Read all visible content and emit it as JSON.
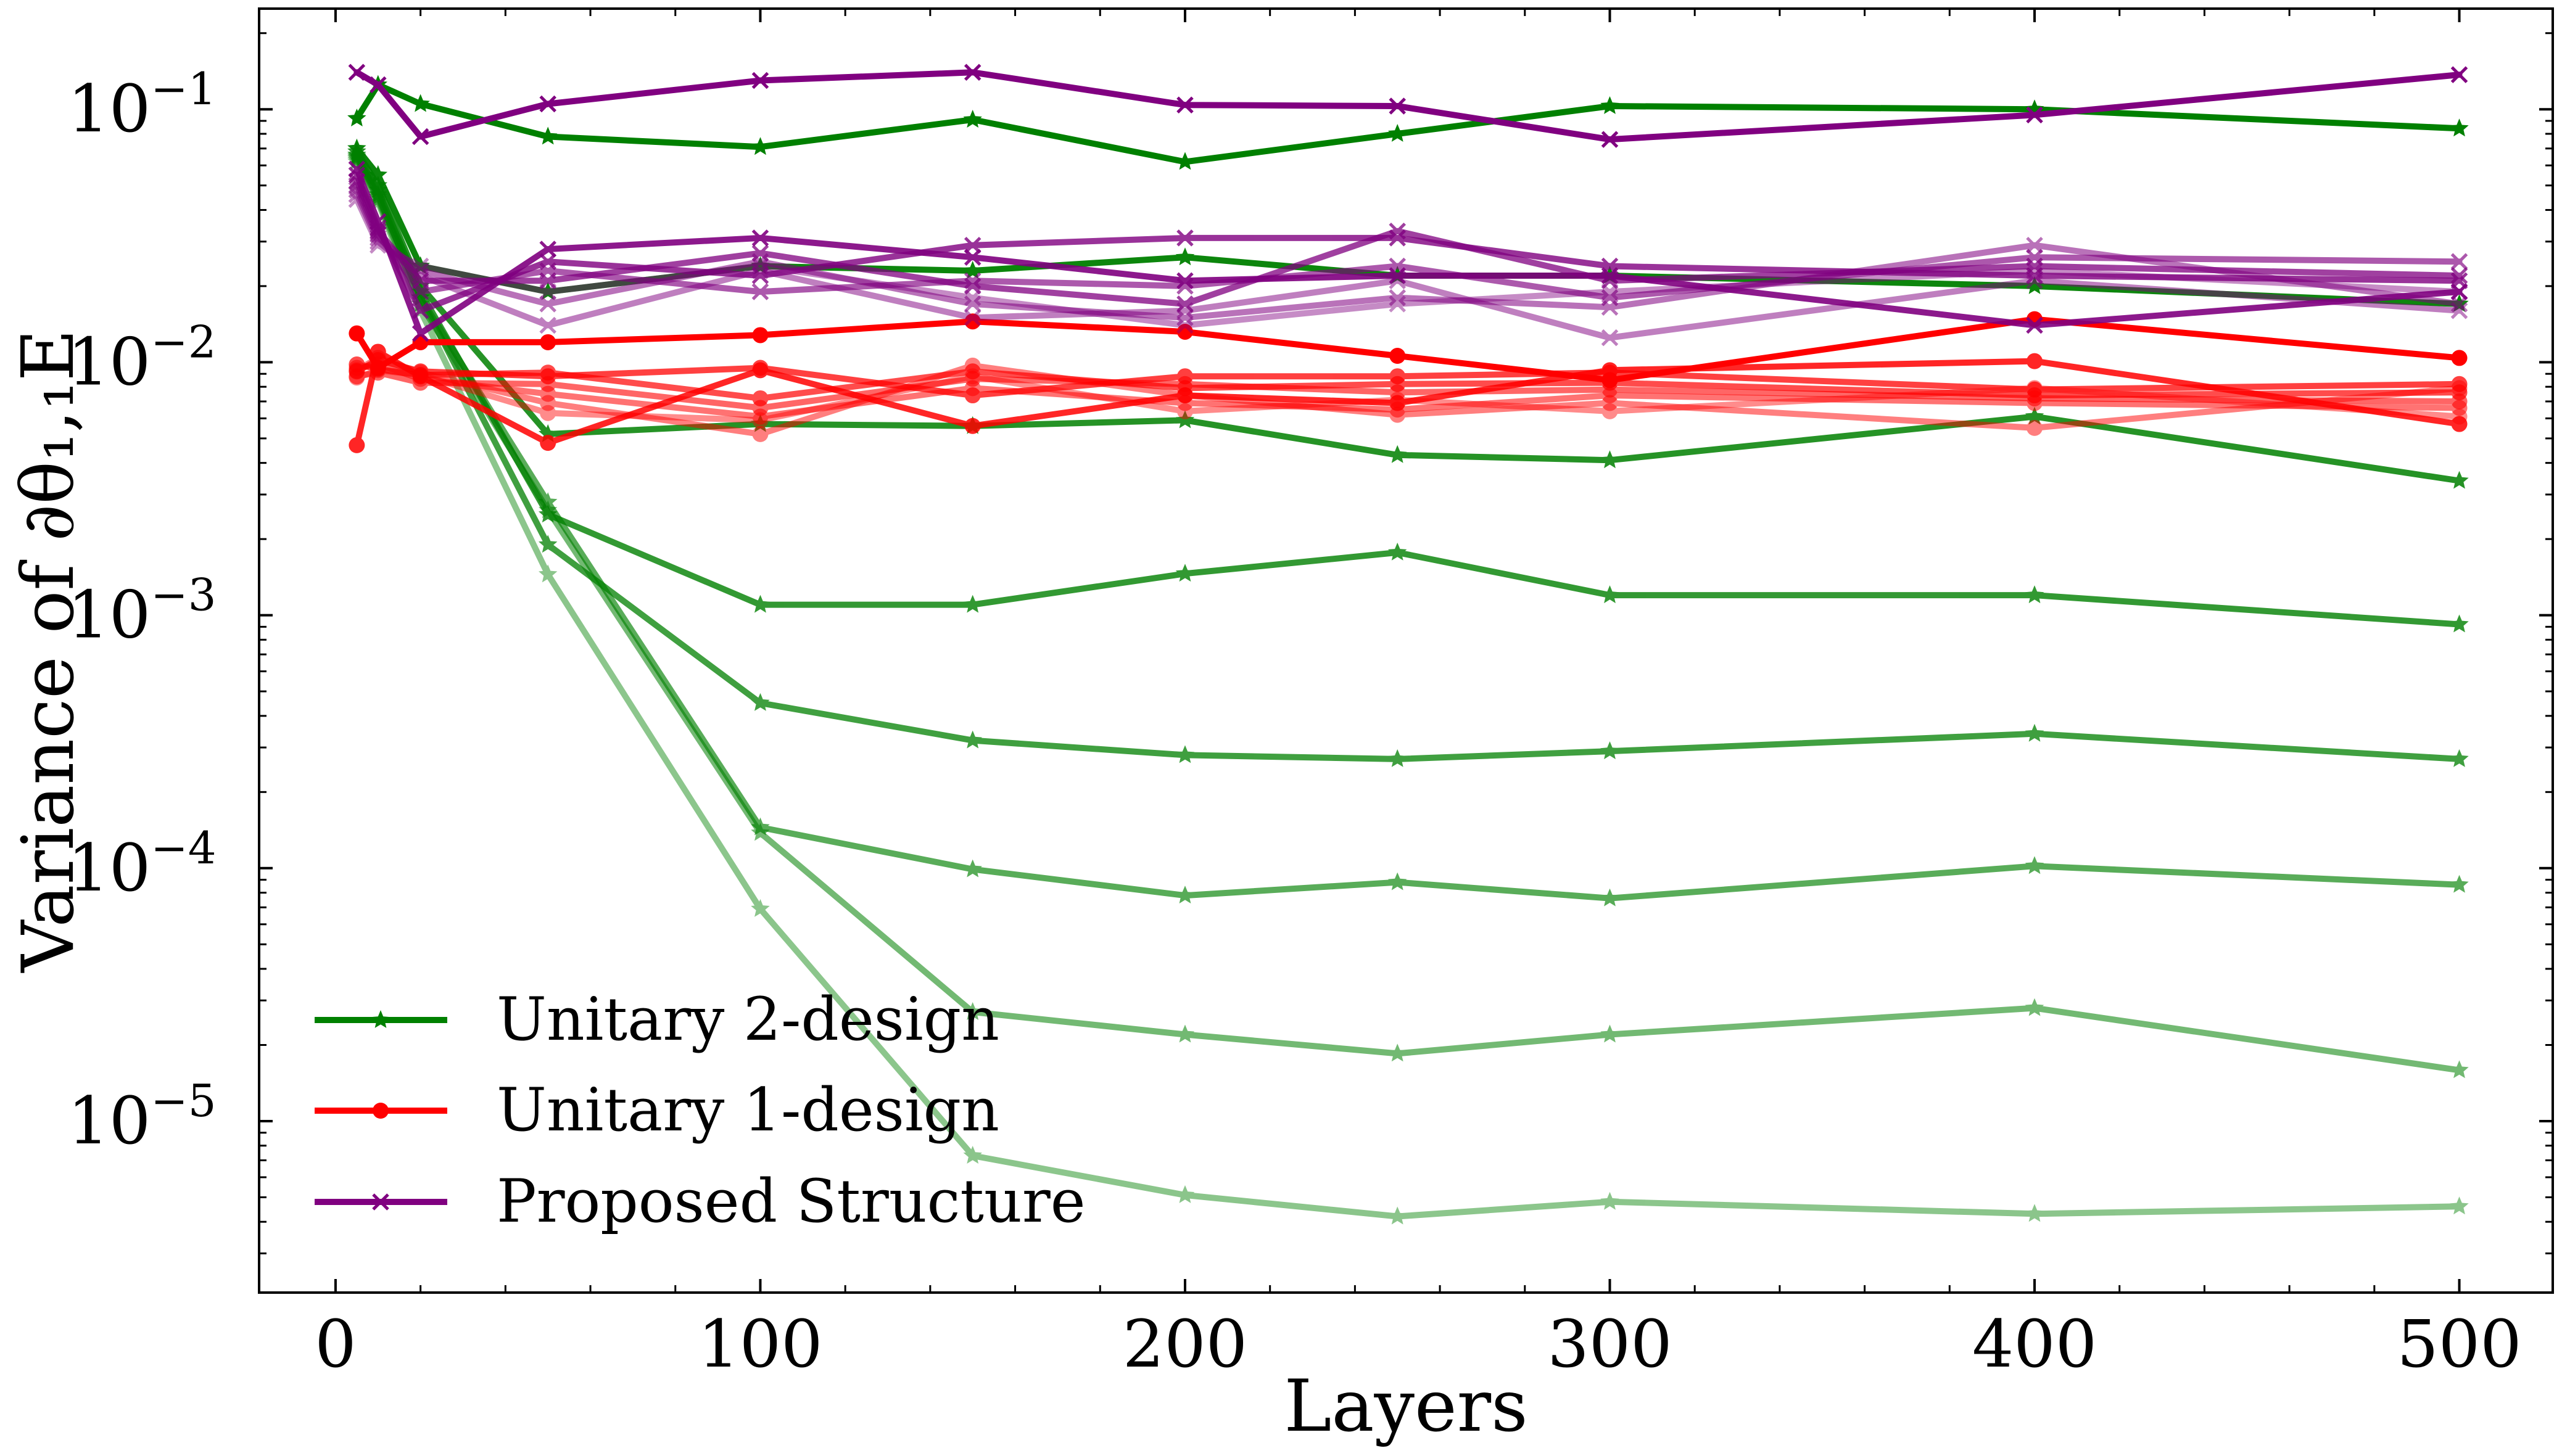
{
  "chart_data": {
    "type": "line",
    "xlabel": "Layers",
    "ylabel": "Variance of ∂θ₁,₁E",
    "x_scale": "linear",
    "y_scale": "log",
    "xlim": [
      -18,
      522
    ],
    "ylim": [
      2.1e-06,
      0.25
    ],
    "x_ticks": [
      0,
      100,
      200,
      300,
      400,
      500
    ],
    "y_ticks": [
      1e-05,
      0.0001,
      0.001,
      0.01,
      0.1
    ],
    "x": [
      5,
      10,
      20,
      50,
      100,
      150,
      200,
      250,
      300,
      400,
      500
    ],
    "colors": {
      "unitary2": "#008000",
      "unitary1": "#ff0000",
      "proposed": "#800080"
    },
    "legend": [
      {
        "label": "Unitary 2-design",
        "group": "unitary2",
        "marker": "star"
      },
      {
        "label": "Unitary 1-design",
        "group": "unitary1",
        "marker": "circle"
      },
      {
        "label": "Proposed Structure",
        "group": "proposed",
        "marker": "x"
      }
    ],
    "series": [
      {
        "name": "Unitary 2-design (2)",
        "group": "unitary2",
        "alpha": 1.0,
        "values": [
          0.092,
          0.125,
          0.105,
          0.078,
          0.071,
          0.091,
          0.062,
          0.08,
          0.103,
          0.1,
          0.084
        ]
      },
      {
        "name": "Unitary 2-design (4)",
        "group": "unitary2",
        "alpha": 0.95,
        "values": [
          0.07,
          0.055,
          0.024,
          0.019,
          0.024,
          0.023,
          0.026,
          0.022,
          0.022,
          0.02,
          0.017
        ]
      },
      {
        "name": "Unitary 2-design (6)",
        "group": "unitary2",
        "alpha": 0.85,
        "values": [
          0.068,
          0.05,
          0.02,
          0.0052,
          0.0057,
          0.0056,
          0.0059,
          0.0043,
          0.0041,
          0.0061,
          0.0034
        ]
      },
      {
        "name": "Unitary 2-design (8)",
        "group": "unitary2",
        "alpha": 0.8,
        "values": [
          0.066,
          0.048,
          0.019,
          0.0025,
          0.0011,
          0.0011,
          0.00146,
          0.00177,
          0.0012,
          0.0012,
          0.00092
        ]
      },
      {
        "name": "Unitary 2-design (10)",
        "group": "unitary2",
        "alpha": 0.75,
        "values": [
          0.065,
          0.046,
          0.018,
          0.0019,
          0.00045,
          0.00032,
          0.00028,
          0.00027,
          0.00029,
          0.00034,
          0.00027
        ]
      },
      {
        "name": "Unitary 2-design (12)",
        "group": "unitary2",
        "alpha": 0.65,
        "values": [
          0.064,
          0.045,
          0.018,
          0.0028,
          0.000145,
          9.9e-05,
          7.8e-05,
          8.8e-05,
          7.6e-05,
          0.000102,
          8.6e-05
        ]
      },
      {
        "name": "Unitary 2-design (14)",
        "group": "unitary2",
        "alpha": 0.55,
        "values": [
          0.063,
          0.044,
          0.017,
          0.0026,
          0.000138,
          2.7e-05,
          2.2e-05,
          1.85e-05,
          2.2e-05,
          2.8e-05,
          1.59e-05
        ]
      },
      {
        "name": "Unitary 2-design (16)",
        "group": "unitary2",
        "alpha": 0.45,
        "values": [
          0.062,
          0.043,
          0.016,
          0.00145,
          6.9e-05,
          7.3e-06,
          5.1e-06,
          4.2e-06,
          4.8e-06,
          4.3e-06,
          4.6e-06
        ]
      },
      {
        "name": "Unitary 1-design (a)",
        "group": "unitary1",
        "alpha": 1.0,
        "values": [
          0.013,
          0.0095,
          0.012,
          0.012,
          0.0128,
          0.0145,
          0.0132,
          0.0106,
          0.0085,
          0.0148,
          0.0104
        ]
      },
      {
        "name": "Unitary 1-design (b)",
        "group": "unitary1",
        "alpha": 0.85,
        "values": [
          0.0047,
          0.011,
          0.0088,
          0.0048,
          0.0093,
          0.0056,
          0.0074,
          0.0069,
          0.0093,
          0.0101,
          0.0057
        ]
      },
      {
        "name": "Unitary 1-design (c)",
        "group": "unitary1",
        "alpha": 0.75,
        "values": [
          0.0092,
          0.0102,
          0.0092,
          0.0088,
          0.0095,
          0.0074,
          0.0088,
          0.0088,
          0.0091,
          0.0078,
          0.0082
        ]
      },
      {
        "name": "Unitary 1-design (d)",
        "group": "unitary1",
        "alpha": 0.7,
        "values": [
          0.0098,
          0.0094,
          0.0089,
          0.0091,
          0.0072,
          0.0092,
          0.0079,
          0.0082,
          0.0083,
          0.0074,
          0.0076
        ]
      },
      {
        "name": "Unitary 1-design (e)",
        "group": "unitary1",
        "alpha": 0.6,
        "values": [
          0.0088,
          0.0091,
          0.0083,
          0.0082,
          0.0066,
          0.0086,
          0.0082,
          0.0076,
          0.0078,
          0.0072,
          0.007
        ]
      },
      {
        "name": "Unitary 1-design (f)",
        "group": "unitary1",
        "alpha": 0.55,
        "values": [
          0.0095,
          0.0098,
          0.0086,
          0.0075,
          0.0061,
          0.0079,
          0.0069,
          0.0065,
          0.0074,
          0.0069,
          0.0066
        ]
      },
      {
        "name": "Unitary 1-design (g)",
        "group": "unitary1",
        "alpha": 0.5,
        "values": [
          0.0093,
          0.0104,
          0.0091,
          0.0069,
          0.0052,
          0.0097,
          0.0074,
          0.0062,
          0.0069,
          0.0055,
          0.0079
        ]
      },
      {
        "name": "Unitary 1-design (h)",
        "group": "unitary1",
        "alpha": 0.45,
        "values": [
          0.0087,
          0.0093,
          0.0089,
          0.0063,
          0.0059,
          0.0088,
          0.0064,
          0.0071,
          0.0064,
          0.0079,
          0.0061
        ]
      },
      {
        "name": "Proposed Structure (a)",
        "group": "proposed",
        "alpha": 1.0,
        "values": [
          0.14,
          0.125,
          0.078,
          0.105,
          0.13,
          0.14,
          0.104,
          0.103,
          0.076,
          0.095,
          0.137
        ]
      },
      {
        "name": "Proposed Structure (b)",
        "group": "proposed",
        "alpha": 0.9,
        "values": [
          0.058,
          0.036,
          0.013,
          0.028,
          0.031,
          0.026,
          0.021,
          0.022,
          0.022,
          0.014,
          0.019
        ]
      },
      {
        "name": "Proposed Structure (c)",
        "group": "proposed",
        "alpha": 0.8,
        "values": [
          0.055,
          0.034,
          0.016,
          0.025,
          0.022,
          0.029,
          0.031,
          0.031,
          0.024,
          0.022,
          0.021
        ]
      },
      {
        "name": "Proposed Structure (d)",
        "group": "proposed",
        "alpha": 0.75,
        "values": [
          0.052,
          0.033,
          0.021,
          0.021,
          0.027,
          0.02,
          0.017,
          0.033,
          0.021,
          0.024,
          0.022
        ]
      },
      {
        "name": "Proposed Structure (e)",
        "group": "proposed",
        "alpha": 0.65,
        "values": [
          0.05,
          0.032,
          0.019,
          0.023,
          0.019,
          0.021,
          0.02,
          0.024,
          0.018,
          0.026,
          0.025
        ]
      },
      {
        "name": "Proposed Structure (f)",
        "group": "proposed",
        "alpha": 0.55,
        "values": [
          0.048,
          0.031,
          0.023,
          0.017,
          0.025,
          0.017,
          0.015,
          0.018,
          0.0165,
          0.029,
          0.017
        ]
      },
      {
        "name": "Proposed Structure (g)",
        "group": "proposed",
        "alpha": 0.5,
        "values": [
          0.046,
          0.03,
          0.022,
          0.014,
          0.023,
          0.015,
          0.016,
          0.021,
          0.0125,
          0.021,
          0.016
        ]
      },
      {
        "name": "Proposed Structure (h)",
        "group": "proposed",
        "alpha": 0.45,
        "values": [
          0.044,
          0.029,
          0.024,
          0.019,
          0.024,
          0.018,
          0.014,
          0.017,
          0.019,
          0.023,
          0.019
        ]
      }
    ]
  }
}
